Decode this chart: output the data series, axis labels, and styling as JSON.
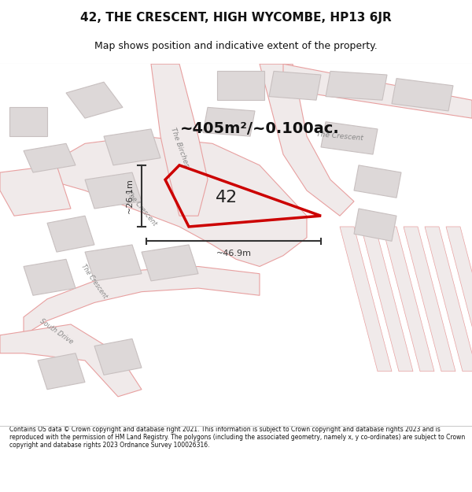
{
  "title": "42, THE CRESCENT, HIGH WYCOMBE, HP13 6JR",
  "subtitle": "Map shows position and indicative extent of the property.",
  "area_text": "~405m²/~0.100ac.",
  "label_42": "42",
  "dim_height": "~26.1m",
  "dim_width": "~46.9m",
  "footer": "Contains OS data © Crown copyright and database right 2021. This information is subject to Crown copyright and database rights 2023 and is reproduced with the permission of HM Land Registry. The polygons (including the associated geometry, namely x, y co-ordinates) are subject to Crown copyright and database rights 2023 Ordnance Survey 100026316.",
  "bg_color": "#f5f0f0",
  "map_bg": "#f8f4f4",
  "road_color": "#e8a0a0",
  "road_fill": "#f0eaea",
  "building_color": "#c8c0c0",
  "building_fill": "#ddd8d8",
  "highlight_color": "#cc0000",
  "dim_color": "#333333",
  "street_label_color": "#888888",
  "title_color": "#111111",
  "footer_color": "#111111"
}
